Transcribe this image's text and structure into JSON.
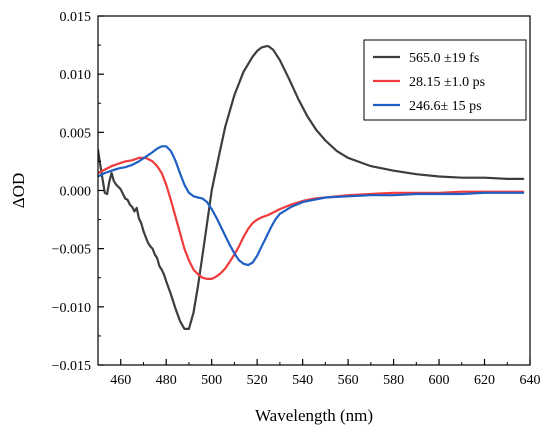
{
  "chart_data": {
    "type": "line",
    "title": "",
    "xlabel": "Wavelength (nm)",
    "ylabel": "ΔOD",
    "xlim": [
      450,
      640
    ],
    "ylim": [
      -0.015,
      0.015
    ],
    "xticks": [
      460,
      480,
      500,
      520,
      540,
      560,
      580,
      600,
      620,
      640
    ],
    "yticks": [
      -0.015,
      -0.01,
      -0.005,
      0.0,
      0.005,
      0.01,
      0.015
    ],
    "ytick_labels": [
      "−0.015",
      "−0.010",
      "−0.005",
      "0.000",
      "0.005",
      "0.010",
      "0.015"
    ],
    "grid": false,
    "legend_position": "top-right",
    "series": [
      {
        "name": "565.0 ±19 fs",
        "color": "#3d3d3d",
        "x": [
          450,
          451,
          452,
          453,
          454,
          455,
          456,
          457,
          458,
          459,
          460,
          461,
          462,
          463,
          464,
          465,
          466,
          467,
          468,
          469,
          470,
          471,
          472,
          473,
          474,
          475,
          476,
          477,
          478,
          479,
          480,
          482,
          484,
          486,
          488,
          490,
          492,
          494,
          496,
          498,
          500,
          503,
          506,
          510,
          514,
          518,
          520,
          522,
          524,
          525,
          527,
          530,
          534,
          538,
          542,
          546,
          550,
          555,
          560,
          570,
          580,
          590,
          600,
          610,
          620,
          630,
          637
        ],
        "y": [
          0.0035,
          0.0022,
          0.001,
          -0.0002,
          -0.0003,
          0.0008,
          0.0015,
          0.0008,
          0.0005,
          0.0003,
          0.0001,
          -0.0003,
          -0.0007,
          -0.0008,
          -0.0012,
          -0.0014,
          -0.0018,
          -0.0015,
          -0.0024,
          -0.0028,
          -0.0035,
          -0.004,
          -0.0045,
          -0.0048,
          -0.005,
          -0.0055,
          -0.0058,
          -0.0065,
          -0.0068,
          -0.0072,
          -0.0078,
          -0.0089,
          -0.0101,
          -0.0112,
          -0.0119,
          -0.0119,
          -0.0105,
          -0.0082,
          -0.0055,
          -0.0028,
          0.0,
          0.0028,
          0.0055,
          0.0082,
          0.0102,
          0.0115,
          0.012,
          0.0123,
          0.0124,
          0.0124,
          0.0121,
          0.0112,
          0.0096,
          0.0079,
          0.0064,
          0.0052,
          0.0043,
          0.0034,
          0.0028,
          0.0021,
          0.0017,
          0.0014,
          0.0012,
          0.0011,
          0.0011,
          0.001,
          0.001
        ]
      },
      {
        "name": "28.15 ±1.0 ps",
        "color": "#ef3b3b",
        "x": [
          450,
          453,
          456,
          459,
          462,
          465,
          468,
          471,
          474,
          476,
          478,
          480,
          482,
          484,
          486,
          488,
          490,
          492,
          494,
          496,
          498,
          500,
          502,
          504,
          506,
          508,
          510,
          512,
          514,
          516,
          518,
          520,
          522,
          525,
          530,
          535,
          540,
          545,
          550,
          560,
          570,
          580,
          590,
          600,
          610,
          620,
          630,
          637
        ],
        "y": [
          0.0015,
          0.0018,
          0.0021,
          0.0023,
          0.0025,
          0.0026,
          0.0028,
          0.0028,
          0.0025,
          0.0021,
          0.0015,
          0.0005,
          -0.0008,
          -0.0022,
          -0.0036,
          -0.005,
          -0.006,
          -0.0068,
          -0.0072,
          -0.0075,
          -0.0076,
          -0.0076,
          -0.0074,
          -0.0071,
          -0.0067,
          -0.0061,
          -0.0055,
          -0.0048,
          -0.004,
          -0.0033,
          -0.0028,
          -0.0025,
          -0.0023,
          -0.0021,
          -0.0016,
          -0.0012,
          -0.0009,
          -0.0007,
          -0.0006,
          -0.0004,
          -0.0003,
          -0.0002,
          -0.0002,
          -0.0002,
          -0.0001,
          -0.0001,
          -0.0001,
          -0.0001
        ]
      },
      {
        "name": "246.6± 15 ps",
        "color": "#1f5fc4",
        "x": [
          450,
          453,
          456,
          459,
          462,
          465,
          468,
          471,
          474,
          476,
          478,
          480,
          482,
          484,
          486,
          488,
          490,
          492,
          494,
          496,
          498,
          500,
          502,
          504,
          506,
          508,
          510,
          512,
          514,
          516,
          518,
          520,
          522,
          524,
          526,
          528,
          530,
          535,
          540,
          545,
          550,
          560,
          570,
          580,
          590,
          600,
          610,
          620,
          630,
          637
        ],
        "y": [
          0.0012,
          0.0015,
          0.0017,
          0.0019,
          0.002,
          0.0022,
          0.0025,
          0.0029,
          0.0033,
          0.0036,
          0.0038,
          0.0038,
          0.0034,
          0.0026,
          0.0015,
          0.0005,
          -0.0002,
          -0.0005,
          -0.0006,
          -0.0007,
          -0.001,
          -0.0016,
          -0.0023,
          -0.0031,
          -0.0039,
          -0.0047,
          -0.0054,
          -0.006,
          -0.0063,
          -0.0064,
          -0.0062,
          -0.0056,
          -0.0048,
          -0.004,
          -0.0032,
          -0.0025,
          -0.002,
          -0.0014,
          -0.001,
          -0.0008,
          -0.0006,
          -0.0005,
          -0.0004,
          -0.0004,
          -0.0003,
          -0.0003,
          -0.0003,
          -0.0002,
          -0.0002,
          -0.0002
        ]
      }
    ]
  }
}
